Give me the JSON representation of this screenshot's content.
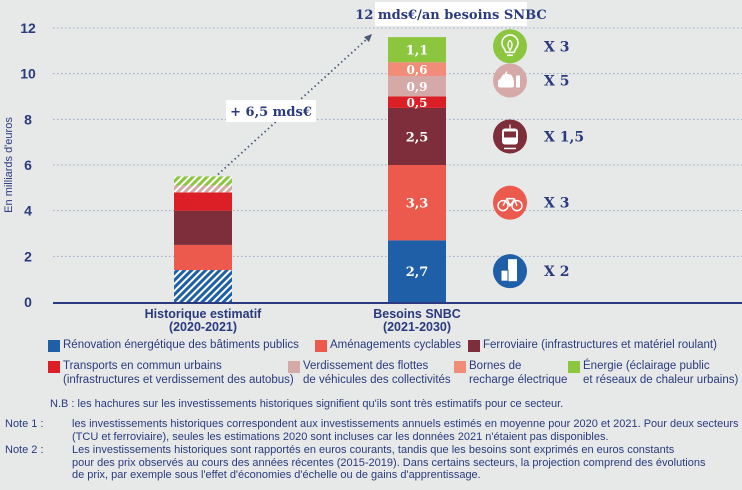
{
  "chart_data": {
    "type": "bar",
    "stacked": true,
    "ylabel": "En milliards d'euros",
    "ylim": [
      0,
      12
    ],
    "yticks": [
      0,
      2,
      4,
      6,
      8,
      10,
      12
    ],
    "grid": true,
    "categories": [
      {
        "label": "Historique estimatif",
        "sub": "(2020-2021)"
      },
      {
        "label": "Besoins SNBC",
        "sub": "(2021-2030)"
      }
    ],
    "series": [
      {
        "name": "Rénovation énergétique des bâtiments publics",
        "color": "#1f5fa8",
        "values": [
          1.4,
          2.7
        ],
        "hatched": [
          true,
          false
        ]
      },
      {
        "name": "Aménagements cyclables",
        "color": "#ec5a4d",
        "values": [
          1.1,
          3.3
        ],
        "hatched": [
          false,
          false
        ]
      },
      {
        "name": "Ferroviaire (infrastructures et matériel roulant)",
        "color": "#7e2e3a",
        "values": [
          1.5,
          2.5
        ],
        "hatched": [
          false,
          false
        ]
      },
      {
        "name": "Transports en commun urbains (infrastructures et verdissement des autobus)",
        "color": "#dc1f26",
        "values": [
          0.8,
          0.5
        ],
        "hatched": [
          false,
          false
        ]
      },
      {
        "name": "Verdissement des flottes de véhicules des collectivités",
        "color": "#d4a9a8",
        "values": [
          0.3,
          0.9
        ],
        "hatched": [
          true,
          false
        ]
      },
      {
        "name": "Bornes de recharge électrique",
        "color": "#f08c78",
        "values": [
          0.0,
          0.6
        ],
        "hatched": [
          false,
          false
        ]
      },
      {
        "name": "Énergie (éclairage public et réseaux de chaleur urbains)",
        "color": "#8cc63f",
        "values": [
          0.4,
          1.1
        ],
        "hatched": [
          true,
          false
        ]
      }
    ],
    "data_labels": [
      "2,7",
      "3,3",
      "2,5",
      "0,5",
      "0,9",
      "0,6",
      "1,1"
    ],
    "annotations": {
      "increase": "+ 6,5  mds€",
      "total": "12 mds€/an besoins SNBC"
    },
    "multipliers": [
      {
        "icon": "building-icon",
        "color": "#1f5fa8",
        "text": "X 2",
        "at": 1.35
      },
      {
        "icon": "bicycle-icon",
        "color": "#ec5a4d",
        "text": "X 3",
        "at": 4.35
      },
      {
        "icon": "tram-icon",
        "color": "#7e2e3a",
        "text": "X 1,5",
        "at": 7.25
      },
      {
        "icon": "electric-car-icon",
        "color": "#d4a9a8",
        "text": "X 5",
        "at": 9.7
      },
      {
        "icon": "lightbulb-icon",
        "color": "#8cc63f",
        "text": "X 3",
        "at": 11.2
      }
    ]
  },
  "legend": [
    {
      "lines": [
        "Rénovation énergétique des bâtiments publics"
      ],
      "color": "#1f5fa8"
    },
    {
      "lines": [
        "Aménagements cyclables"
      ],
      "color": "#ec5a4d"
    },
    {
      "lines": [
        "Ferroviaire (infrastructures et matériel roulant)"
      ],
      "color": "#7e2e3a"
    },
    {
      "lines": [
        "Transports en commun urbains",
        "(infrastructures et verdissement des autobus)"
      ],
      "color": "#dc1f26"
    },
    {
      "lines": [
        "Verdissement des flottes",
        "de véhicules des collectivités"
      ],
      "color": "#d4a9a8"
    },
    {
      "lines": [
        "Bornes de",
        "recharge électrique"
      ],
      "color": "#f08c78"
    },
    {
      "lines": [
        "Énergie (éclairage public",
        "et réseaux de chaleur urbains)"
      ],
      "color": "#8cc63f"
    }
  ],
  "nb": "N.B : les hachures sur les investissements historiques signifient qu'ils sont très estimatifs pour ce secteur.",
  "notes": [
    {
      "key": "Note 1 :",
      "lines": [
        "les investissements historiques correspondent aux investissements annuels estimés en moyenne pour 2020 et 2021. Pour deux secteurs",
        "(TCU et ferroviaire), seules les estimations 2020 sont incluses car les données 2021 n'étaient pas disponibles."
      ]
    },
    {
      "key": "Note 2 :",
      "lines": [
        "Les investissements historiques sont rapportés en euros courants, tandis que les besoins sont exprimés en euros constants",
        "pour des prix observés au cours des années récentes (2015-2019). Dans certains secteurs, la projection comprend des évolutions",
        "de prix, par exemple sous l'effet d'économies d'échelle ou de gains d'apprentissage."
      ]
    }
  ]
}
